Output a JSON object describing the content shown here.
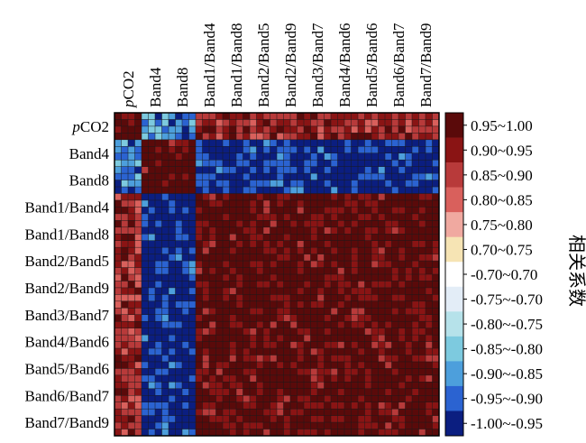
{
  "chart_data": {
    "type": "heatmap",
    "title": "",
    "variables": [
      "pCO2",
      "Band4",
      "Band8",
      "Band1/Band4",
      "Band1/Band8",
      "Band2/Band5",
      "Band2/Band9",
      "Band3/Band7",
      "Band4/Band6",
      "Band5/Band6",
      "Band6/Band7",
      "Band7/Band9"
    ],
    "row_labels": [
      {
        "prefix": "p",
        "rest": "CO2"
      },
      {
        "prefix": "",
        "rest": "Band4"
      },
      {
        "prefix": "",
        "rest": "Band8"
      },
      {
        "prefix": "",
        "rest": "Band1/Band4"
      },
      {
        "prefix": "",
        "rest": "Band1/Band8"
      },
      {
        "prefix": "",
        "rest": "Band2/Band5"
      },
      {
        "prefix": "",
        "rest": "Band2/Band9"
      },
      {
        "prefix": "",
        "rest": "Band3/Band7"
      },
      {
        "prefix": "",
        "rest": "Band4/Band6"
      },
      {
        "prefix": "",
        "rest": "Band5/Band6"
      },
      {
        "prefix": "",
        "rest": "Band6/Band7"
      },
      {
        "prefix": "",
        "rest": "Band7/Band9"
      }
    ],
    "col_labels": [
      {
        "prefix": "p",
        "rest": "CO2"
      },
      {
        "prefix": "",
        "rest": "Band4"
      },
      {
        "prefix": "",
        "rest": "Band8"
      },
      {
        "prefix": "",
        "rest": "Band1/Band4"
      },
      {
        "prefix": "",
        "rest": "Band1/Band8"
      },
      {
        "prefix": "",
        "rest": "Band2/Band5"
      },
      {
        "prefix": "",
        "rest": "Band2/Band9"
      },
      {
        "prefix": "",
        "rest": "Band3/Band7"
      },
      {
        "prefix": "",
        "rest": "Band4/Band6"
      },
      {
        "prefix": "",
        "rest": "Band5/Band6"
      },
      {
        "prefix": "",
        "rest": "Band6/Band7"
      },
      {
        "prefix": "",
        "rest": "Band7/Band9"
      }
    ],
    "cell_divisions_per_variable": 4,
    "blocks_correlation_approx": [
      [
        1.0,
        -0.88,
        -0.9,
        0.9,
        0.9,
        0.9,
        0.9,
        0.9,
        0.9,
        0.9,
        0.9,
        0.9
      ],
      [
        -0.88,
        1.0,
        0.97,
        -0.97,
        -0.97,
        -0.97,
        -0.97,
        -0.97,
        -0.97,
        -0.97,
        -0.97,
        -0.97
      ],
      [
        -0.9,
        0.97,
        1.0,
        -0.97,
        -0.97,
        -0.97,
        -0.97,
        -0.97,
        -0.97,
        -0.97,
        -0.97,
        -0.97
      ],
      [
        0.9,
        -0.97,
        -0.97,
        0.97,
        0.97,
        0.97,
        0.97,
        0.97,
        0.97,
        0.97,
        0.97,
        0.97
      ],
      [
        0.9,
        -0.97,
        -0.97,
        0.97,
        0.97,
        0.97,
        0.97,
        0.97,
        0.97,
        0.97,
        0.97,
        0.97
      ],
      [
        0.9,
        -0.97,
        -0.97,
        0.97,
        0.97,
        0.97,
        0.97,
        0.97,
        0.97,
        0.97,
        0.97,
        0.97
      ],
      [
        0.9,
        -0.97,
        -0.97,
        0.97,
        0.97,
        0.97,
        0.97,
        0.97,
        0.97,
        0.97,
        0.97,
        0.97
      ],
      [
        0.9,
        -0.97,
        -0.97,
        0.97,
        0.97,
        0.97,
        0.97,
        0.97,
        0.97,
        0.97,
        0.97,
        0.97
      ],
      [
        0.9,
        -0.97,
        -0.97,
        0.97,
        0.97,
        0.97,
        0.97,
        0.97,
        0.97,
        0.97,
        0.97,
        0.97
      ],
      [
        0.9,
        -0.97,
        -0.97,
        0.97,
        0.97,
        0.97,
        0.97,
        0.97,
        0.97,
        0.97,
        0.97,
        0.97
      ],
      [
        0.9,
        -0.97,
        -0.97,
        0.97,
        0.97,
        0.97,
        0.97,
        0.97,
        0.97,
        0.97,
        0.97,
        0.97
      ],
      [
        0.9,
        -0.97,
        -0.97,
        0.97,
        0.97,
        0.97,
        0.97,
        0.97,
        0.97,
        0.97,
        0.97,
        0.97
      ]
    ],
    "legend": {
      "title": "相关系数",
      "placement": "right",
      "bins": [
        {
          "label": "0.95~1.00",
          "color": "#5a0a0a"
        },
        {
          "label": "0.90~0.95",
          "color": "#8a1414"
        },
        {
          "label": "0.85~0.90",
          "color": "#b83a3a"
        },
        {
          "label": "0.80~0.85",
          "color": "#d9605c"
        },
        {
          "label": "0.75~0.80",
          "color": "#f0a9a0"
        },
        {
          "label": "0.70~0.75",
          "color": "#f6e4b4"
        },
        {
          "label": "-0.70~0.70",
          "color": "#ffffff"
        },
        {
          "label": "-0.75~-0.70",
          "color": "#e3edf7"
        },
        {
          "label": "-0.80~-0.75",
          "color": "#b6e2ea"
        },
        {
          "label": "-0.85~-0.80",
          "color": "#7dcadf"
        },
        {
          "label": "-0.90~-0.85",
          "color": "#4d9fdc"
        },
        {
          "label": "-0.95~-0.90",
          "color": "#2b63d1"
        },
        {
          "label": "-1.00~-0.95",
          "color": "#0b1e80"
        }
      ]
    },
    "grid": true
  }
}
